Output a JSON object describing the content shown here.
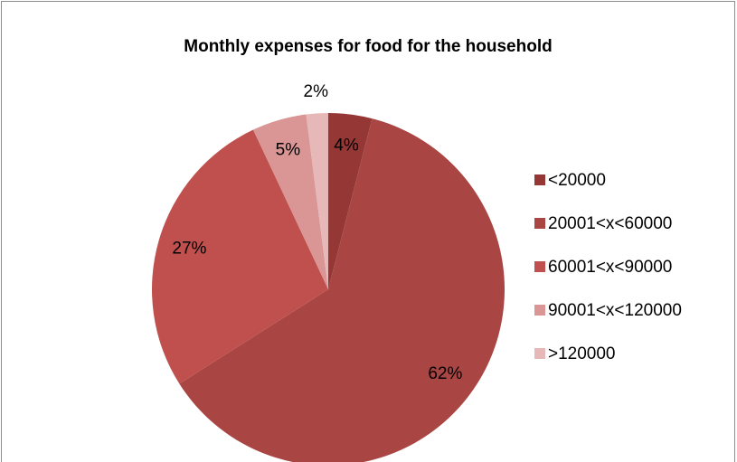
{
  "chart_data": {
    "type": "pie",
    "title": "Monthly expenses for food for the household",
    "categories": [
      "<20000",
      "20001<x<60000",
      "60001<x<90000",
      "90001<x<120000",
      ">120000"
    ],
    "values": [
      4,
      62,
      27,
      5,
      2
    ],
    "value_labels": [
      "4%",
      "62%",
      "27%",
      "5%",
      "2%"
    ],
    "colors": [
      "#953735",
      "#A94644",
      "#C0504D",
      "#D99694",
      "#E6B9B8"
    ],
    "legend": "right"
  }
}
